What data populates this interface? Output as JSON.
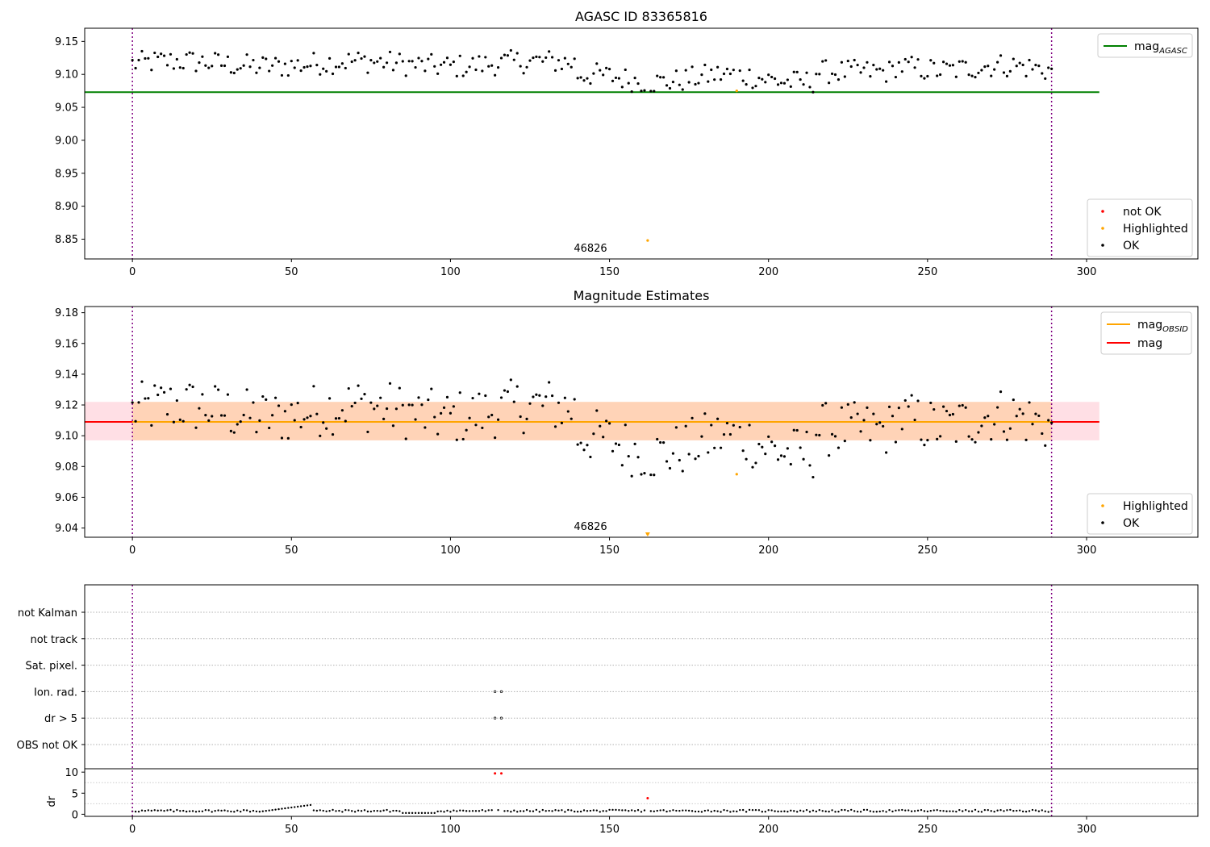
{
  "colors": {
    "ok": "#000000",
    "not_ok": "#ff0000",
    "highlighted": "#ffa500",
    "agasc_line": "#008000",
    "mag_line": "#ff0000",
    "mag_obsid": "#ffa500",
    "vline": "#800080"
  },
  "chart_data": [
    {
      "type": "scatter",
      "title": "AGASC ID 83365816",
      "xlim": [
        -15,
        335
      ],
      "ylim": [
        8.82,
        9.17
      ],
      "xticks": [
        0,
        50,
        100,
        150,
        200,
        250,
        300
      ],
      "yticks": [
        8.85,
        8.9,
        8.95,
        9.0,
        9.05,
        9.1,
        9.15
      ],
      "ytick_labels": [
        "8.85",
        "8.90",
        "8.95",
        "9.00",
        "9.05",
        "9.10",
        "9.15"
      ],
      "vlines": [
        0,
        289
      ],
      "hline": {
        "name": "mag_AGASC",
        "value": 9.073,
        "x_end": 304
      },
      "annotation": {
        "text": "46826",
        "x": 144
      },
      "legend_lines": [
        {
          "label": "mag",
          "sub": "AGASC",
          "color": "#008000"
        }
      ],
      "legend_markers": [
        {
          "label": "not OK",
          "color": "#ff0000"
        },
        {
          "label": "Highlighted",
          "color": "#ffa500"
        },
        {
          "label": "OK",
          "color": "#000000"
        }
      ],
      "highlighted": [
        {
          "x": 162,
          "y": 8.848
        },
        {
          "x": 190,
          "y": 9.075
        }
      ]
    },
    {
      "type": "scatter",
      "title": "Magnitude Estimates",
      "xlim": [
        -15,
        335
      ],
      "ylim": [
        9.034,
        9.184
      ],
      "xticks": [
        0,
        50,
        100,
        150,
        200,
        250,
        300
      ],
      "yticks": [
        9.04,
        9.06,
        9.08,
        9.1,
        9.12,
        9.14,
        9.16,
        9.18
      ],
      "ytick_labels": [
        "9.04",
        "9.06",
        "9.08",
        "9.10",
        "9.12",
        "9.14",
        "9.16",
        "9.18"
      ],
      "vlines": [
        0,
        289
      ],
      "band": {
        "x_start": -15,
        "x_end": 304,
        "y_low": 9.097,
        "y_high": 9.122
      },
      "mag": 9.109,
      "mag_obsid": 9.109,
      "annotation": {
        "text": "46826",
        "x": 144
      },
      "legend_lines": [
        {
          "label": "mag",
          "sub": "OBSID",
          "color": "#ffa500"
        },
        {
          "label": "mag",
          "sub": "",
          "color": "#ff0000"
        }
      ],
      "legend_markers": [
        {
          "label": "Highlighted",
          "color": "#ffa500"
        },
        {
          "label": "OK",
          "color": "#000000"
        }
      ],
      "highlighted": [
        {
          "x": 190,
          "y": 9.075
        },
        {
          "x": 162,
          "y": 9.036
        }
      ]
    },
    {
      "type": "scatter",
      "flags": [
        "not Kalman",
        "not track",
        "Sat. pixel.",
        "Ion. rad.",
        "dr > 5",
        "OBS not OK"
      ],
      "flag_points": [
        {
          "flag": "Ion. rad.",
          "x": [
            114,
            116
          ]
        },
        {
          "flag": "dr > 5",
          "x": [
            114,
            116
          ]
        }
      ],
      "xlim": [
        -15,
        335
      ],
      "xticks": [
        0,
        50,
        100,
        150,
        200,
        250,
        300
      ],
      "vlines": [
        0,
        289
      ],
      "dr": {
        "ylabel": "dr",
        "ylim": [
          -0.5,
          10.8
        ],
        "yticks": [
          0,
          5,
          10
        ],
        "ytick_labels": [
          "0",
          "5",
          "10"
        ],
        "red_points": [
          {
            "x": 114,
            "y": 9.7
          },
          {
            "x": 116,
            "y": 9.7
          },
          {
            "x": 162,
            "y": 3.8
          }
        ]
      }
    }
  ]
}
